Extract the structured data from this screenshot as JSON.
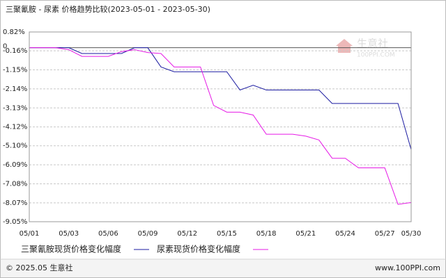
{
  "chart_data": {
    "type": "line",
    "title": "三聚氰胺 - 尿素 价格趋势比较(2023-05-01 - 2023-05-30)",
    "categories": [
      "05/01",
      null,
      null,
      "05/03",
      null,
      null,
      "05/06",
      null,
      null,
      "05/09",
      null,
      null,
      "05/12",
      null,
      null,
      "05/15",
      null,
      null,
      "05/18",
      null,
      null,
      "05/21",
      null,
      null,
      "05/24",
      null,
      null,
      "05/27",
      null,
      "05/30"
    ],
    "series": [
      {
        "name": "三聚氰胺现货价格变化幅度",
        "color": "#1a1aa0",
        "values": [
          0,
          0,
          0,
          0,
          -0.3,
          -0.3,
          -0.3,
          -0.3,
          0,
          0,
          -1.0,
          -1.25,
          -1.25,
          -1.25,
          -1.25,
          -1.25,
          -2.2,
          -1.95,
          -2.2,
          -2.2,
          -2.2,
          -2.2,
          -2.2,
          -2.9,
          -2.9,
          -2.9,
          -2.9,
          -2.9,
          -2.9,
          -5.3
        ]
      },
      {
        "name": "尿素现货价格变化幅度",
        "color": "#e619e6",
        "values": [
          0,
          0,
          0,
          -0.1,
          -0.45,
          -0.45,
          -0.45,
          -0.2,
          -0.1,
          -0.25,
          -0.3,
          -1.0,
          -1.0,
          -1.0,
          -3.0,
          -3.35,
          -3.35,
          -3.5,
          -4.5,
          -4.5,
          -4.5,
          -4.6,
          -4.8,
          -5.75,
          -5.75,
          -6.25,
          -6.25,
          -6.25,
          -8.15,
          -8.05
        ]
      }
    ],
    "ylim": [
      -9.05,
      0.82
    ],
    "yticks": [
      {
        "value": 0.82,
        "label": "0.82%"
      },
      {
        "value": -0.16,
        "label": "-0.16%"
      },
      {
        "value": -1.15,
        "label": "-1.15%"
      },
      {
        "value": -2.14,
        "label": "-2.14%"
      },
      {
        "value": -3.13,
        "label": "-3.13%"
      },
      {
        "value": -4.12,
        "label": "-4.12%"
      },
      {
        "value": -5.1,
        "label": "-5.10%"
      },
      {
        "value": -6.09,
        "label": "-6.09%"
      },
      {
        "value": -7.08,
        "label": "-7.08%"
      },
      {
        "value": -8.07,
        "label": "-8.07%"
      },
      {
        "value": -9.05,
        "label": "-9.05%"
      }
    ],
    "zero_line": 0,
    "grid": true,
    "watermark": {
      "name": "生意社",
      "site": "100PPI.COM"
    },
    "footer": {
      "copyright": "© 2025.05 生意社",
      "url": "www.100PPI.com"
    }
  }
}
